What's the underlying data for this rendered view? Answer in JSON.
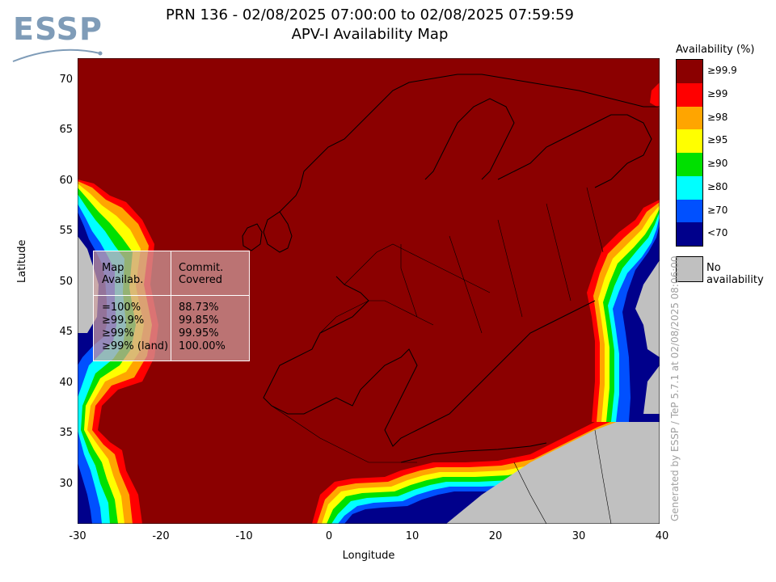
{
  "logo": {
    "text": "ESSP"
  },
  "title": {
    "line1": "PRN 136 - 02/08/2025 07:00:00 to 02/08/2025 07:59:59",
    "line2": "APV-I Availability Map"
  },
  "axes": {
    "xlabel": "Longitude",
    "ylabel": "Latitude",
    "x_ticks": [
      "-30",
      "-20",
      "-10",
      "0",
      "10",
      "20",
      "30",
      "40"
    ],
    "y_ticks": [
      "70",
      "65",
      "60",
      "55",
      "50",
      "45",
      "40",
      "35",
      "30"
    ],
    "xlim": [
      -30,
      40
    ],
    "ylim": [
      26,
      72
    ]
  },
  "legend": {
    "title": "Availability (%)",
    "items": [
      {
        "label": "≥99.9",
        "color": "#8b0000"
      },
      {
        "label": "≥99",
        "color": "#ff0000"
      },
      {
        "label": "≥98",
        "color": "#ffa500"
      },
      {
        "label": "≥95",
        "color": "#ffff00"
      },
      {
        "label": "≥90",
        "color": "#00e000"
      },
      {
        "label": "≥80",
        "color": "#00ffff"
      },
      {
        "label": "≥70",
        "color": "#0050ff"
      },
      {
        "label": "<70",
        "color": "#00008b"
      }
    ],
    "no_availability": {
      "label": "No availability",
      "color": "#c0c0c0"
    }
  },
  "stats": {
    "header_col1": [
      "Map",
      "Availab."
    ],
    "header_col2": [
      "Commit.",
      "Covered"
    ],
    "rows": [
      {
        "label": "=100%",
        "value": "88.73%"
      },
      {
        "label": "≥99.9%",
        "value": "99.85%"
      },
      {
        "label": "≥99%",
        "value": "99.95%"
      },
      {
        "label": "≥99% (land)",
        "value": "100.00%"
      }
    ]
  },
  "credit": "Generated by ESSP / TeP 5.7.1 at 02/08/2025 08:06:00"
}
